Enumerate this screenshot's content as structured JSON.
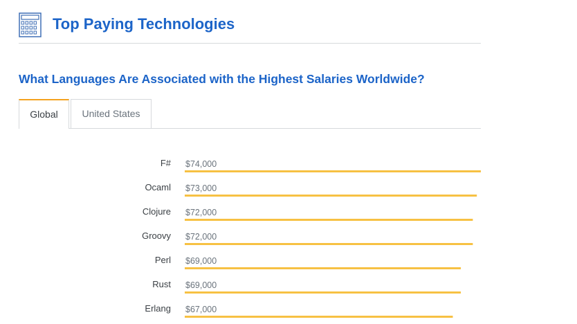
{
  "header": {
    "title": "Top Paying Technologies",
    "icon": "calculator-icon"
  },
  "section": {
    "question": "What Languages Are Associated with the Highest Salaries Worldwide?"
  },
  "tabs": [
    {
      "label": "Global",
      "active": true
    },
    {
      "label": "United States",
      "active": false
    }
  ],
  "colors": {
    "accent": "#f4a21e",
    "bar": "#f7c143",
    "title": "#1c64c8"
  },
  "chart_data": {
    "type": "bar",
    "orientation": "horizontal",
    "categories": [
      "F#",
      "Ocaml",
      "Clojure",
      "Groovy",
      "Perl",
      "Rust",
      "Erlang"
    ],
    "values": [
      74000,
      73000,
      72000,
      72000,
      69000,
      69000,
      67000
    ],
    "value_labels": [
      "$74,000",
      "$73,000",
      "$72,000",
      "$72,000",
      "$69,000",
      "$69,000",
      "$67,000"
    ],
    "xlim": [
      0,
      74000
    ],
    "grid": false
  }
}
